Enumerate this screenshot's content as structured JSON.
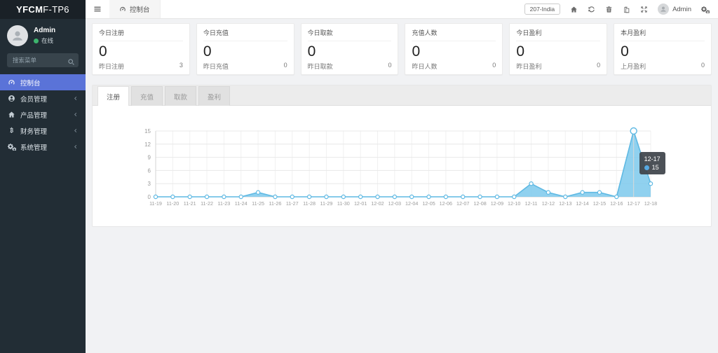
{
  "colors": {
    "accent": "#5a73d8",
    "online_green": "#3db46d",
    "chart_line": "#5fb9e3",
    "chart_fill": "#7cc9ec",
    "tooltip_bg": "#3e444a"
  },
  "sidebar": {
    "logo_bold": "YFCM",
    "logo_rest": "F-TP6",
    "user_name": "Admin",
    "user_status": "在线",
    "search_placeholder": "搜索菜单",
    "menu": [
      {
        "label": "控制台",
        "icon": "tachometer-icon",
        "active": true
      },
      {
        "label": "会员管理",
        "icon": "user-circle-icon"
      },
      {
        "label": "产品管理",
        "icon": "home-icon"
      },
      {
        "label": "财务管理",
        "icon": "money-icon"
      },
      {
        "label": "系统管理",
        "icon": "gears-icon"
      }
    ]
  },
  "topbar": {
    "active_tab": "控制台",
    "region_badge": "207-India",
    "username": "Admin"
  },
  "stats": [
    {
      "title": "今日注册",
      "value": "0",
      "sub_label": "昨日注册",
      "sub_value": "3"
    },
    {
      "title": "今日充值",
      "value": "0",
      "sub_label": "昨日充值",
      "sub_value": "0"
    },
    {
      "title": "今日取款",
      "value": "0",
      "sub_label": "昨日取款",
      "sub_value": "0"
    },
    {
      "title": "充值人数",
      "value": "0",
      "sub_label": "昨日人数",
      "sub_value": "0"
    },
    {
      "title": "今日盈利",
      "value": "0",
      "sub_label": "昨日盈利",
      "sub_value": "0"
    },
    {
      "title": "本月盈利",
      "value": "0",
      "sub_label": "上月盈利",
      "sub_value": "0"
    }
  ],
  "panel": {
    "tabs": [
      "注册",
      "充值",
      "取款",
      "盈利"
    ]
  },
  "chart_data": {
    "type": "area",
    "title": "",
    "x": [
      "11-19",
      "11-20",
      "11-21",
      "11-22",
      "11-23",
      "11-24",
      "11-25",
      "11-26",
      "11-27",
      "11-28",
      "11-29",
      "11-30",
      "12-01",
      "12-02",
      "12-03",
      "12-04",
      "12-05",
      "12-06",
      "12-07",
      "12-08",
      "12-09",
      "12-10",
      "12-11",
      "12-12",
      "12-13",
      "12-14",
      "12-15",
      "12-16",
      "12-17",
      "12-18"
    ],
    "values": [
      0,
      0,
      0,
      0,
      0,
      0,
      1,
      0,
      0,
      0,
      0,
      0,
      0,
      0,
      0,
      0,
      0,
      0,
      0,
      0,
      0,
      0,
      3,
      1,
      0,
      1,
      1,
      0,
      15,
      3
    ],
    "ylim": [
      0,
      15
    ],
    "yticks": [
      0,
      3,
      6,
      9,
      12,
      15
    ],
    "grid": true,
    "line_color": "#5fb9e3",
    "fill_color": "#7cc9ec",
    "tooltip": {
      "label": "12-17",
      "value": "15",
      "index": 28
    }
  }
}
